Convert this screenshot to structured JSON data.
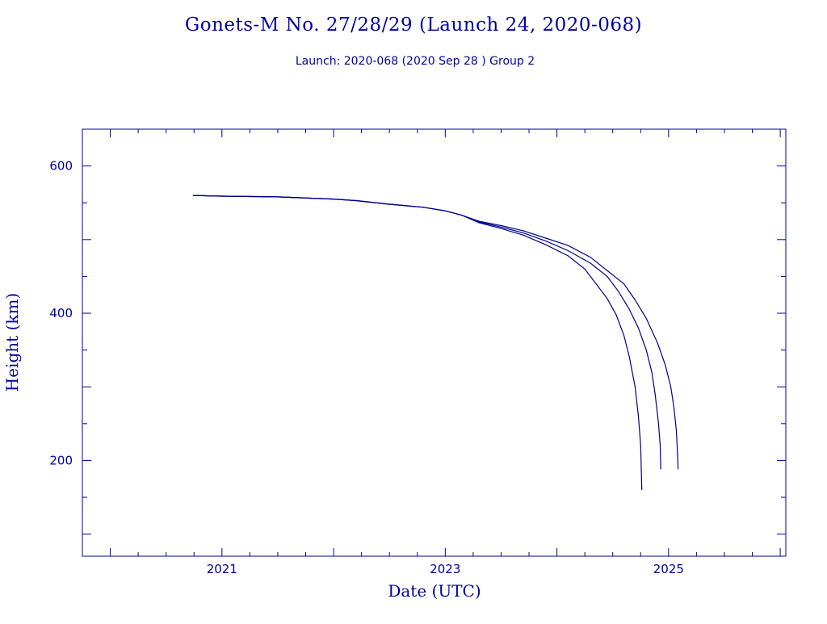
{
  "chart_data": {
    "type": "line",
    "title": "Gonets-M No. 27/28/29 (Launch 24, 2020-068)",
    "subtitle": "Launch: 2020-068  (2020 Sep 28 )  Group 2",
    "xlabel": "Date (UTC)",
    "ylabel": "Height (km)",
    "x_ticks": [
      2021,
      2023,
      2025
    ],
    "y_ticks": [
      200,
      400,
      600
    ],
    "xlim": [
      2019.75,
      2026.05
    ],
    "ylim": [
      70,
      650
    ],
    "grid": false,
    "color": "#00008b",
    "series": [
      {
        "values": [
          [
            2020.74,
            560
          ],
          [
            2021.0,
            559
          ],
          [
            2021.5,
            558
          ],
          [
            2022.0,
            555
          ],
          [
            2022.2,
            553
          ],
          [
            2022.5,
            548
          ],
          [
            2022.8,
            544
          ],
          [
            2023.0,
            539
          ],
          [
            2023.15,
            533
          ],
          [
            2023.3,
            523
          ],
          [
            2023.5,
            515
          ],
          [
            2023.7,
            506
          ],
          [
            2023.9,
            493
          ],
          [
            2024.1,
            478
          ],
          [
            2024.25,
            460
          ],
          [
            2024.35,
            440
          ],
          [
            2024.45,
            420
          ],
          [
            2024.53,
            398
          ],
          [
            2024.6,
            370
          ],
          [
            2024.65,
            340
          ],
          [
            2024.7,
            300
          ],
          [
            2024.73,
            260
          ],
          [
            2024.75,
            220
          ],
          [
            2024.76,
            160
          ]
        ]
      },
      {
        "values": [
          [
            2020.74,
            560
          ],
          [
            2021.0,
            559
          ],
          [
            2021.5,
            558
          ],
          [
            2022.0,
            555
          ],
          [
            2022.2,
            553
          ],
          [
            2022.5,
            548
          ],
          [
            2022.8,
            544
          ],
          [
            2023.0,
            539
          ],
          [
            2023.15,
            533
          ],
          [
            2023.3,
            524
          ],
          [
            2023.5,
            517
          ],
          [
            2023.7,
            509
          ],
          [
            2023.9,
            498
          ],
          [
            2024.1,
            485
          ],
          [
            2024.3,
            468
          ],
          [
            2024.45,
            450
          ],
          [
            2024.55,
            430
          ],
          [
            2024.65,
            405
          ],
          [
            2024.73,
            380
          ],
          [
            2024.8,
            350
          ],
          [
            2024.85,
            320
          ],
          [
            2024.88,
            290
          ],
          [
            2024.91,
            250
          ],
          [
            2024.925,
            220
          ],
          [
            2024.93,
            188
          ]
        ]
      },
      {
        "values": [
          [
            2020.74,
            560
          ],
          [
            2021.0,
            559
          ],
          [
            2021.5,
            558
          ],
          [
            2022.0,
            555
          ],
          [
            2022.2,
            553
          ],
          [
            2022.5,
            548
          ],
          [
            2022.8,
            544
          ],
          [
            2023.0,
            539
          ],
          [
            2023.15,
            533
          ],
          [
            2023.3,
            525
          ],
          [
            2023.5,
            519
          ],
          [
            2023.7,
            512
          ],
          [
            2023.9,
            502
          ],
          [
            2024.1,
            492
          ],
          [
            2024.3,
            476
          ],
          [
            2024.5,
            452
          ],
          [
            2024.6,
            440
          ],
          [
            2024.7,
            418
          ],
          [
            2024.8,
            393
          ],
          [
            2024.9,
            360
          ],
          [
            2024.97,
            330
          ],
          [
            2025.02,
            300
          ],
          [
            2025.05,
            270
          ],
          [
            2025.07,
            240
          ],
          [
            2025.08,
            210
          ],
          [
            2025.085,
            188
          ]
        ]
      }
    ]
  }
}
